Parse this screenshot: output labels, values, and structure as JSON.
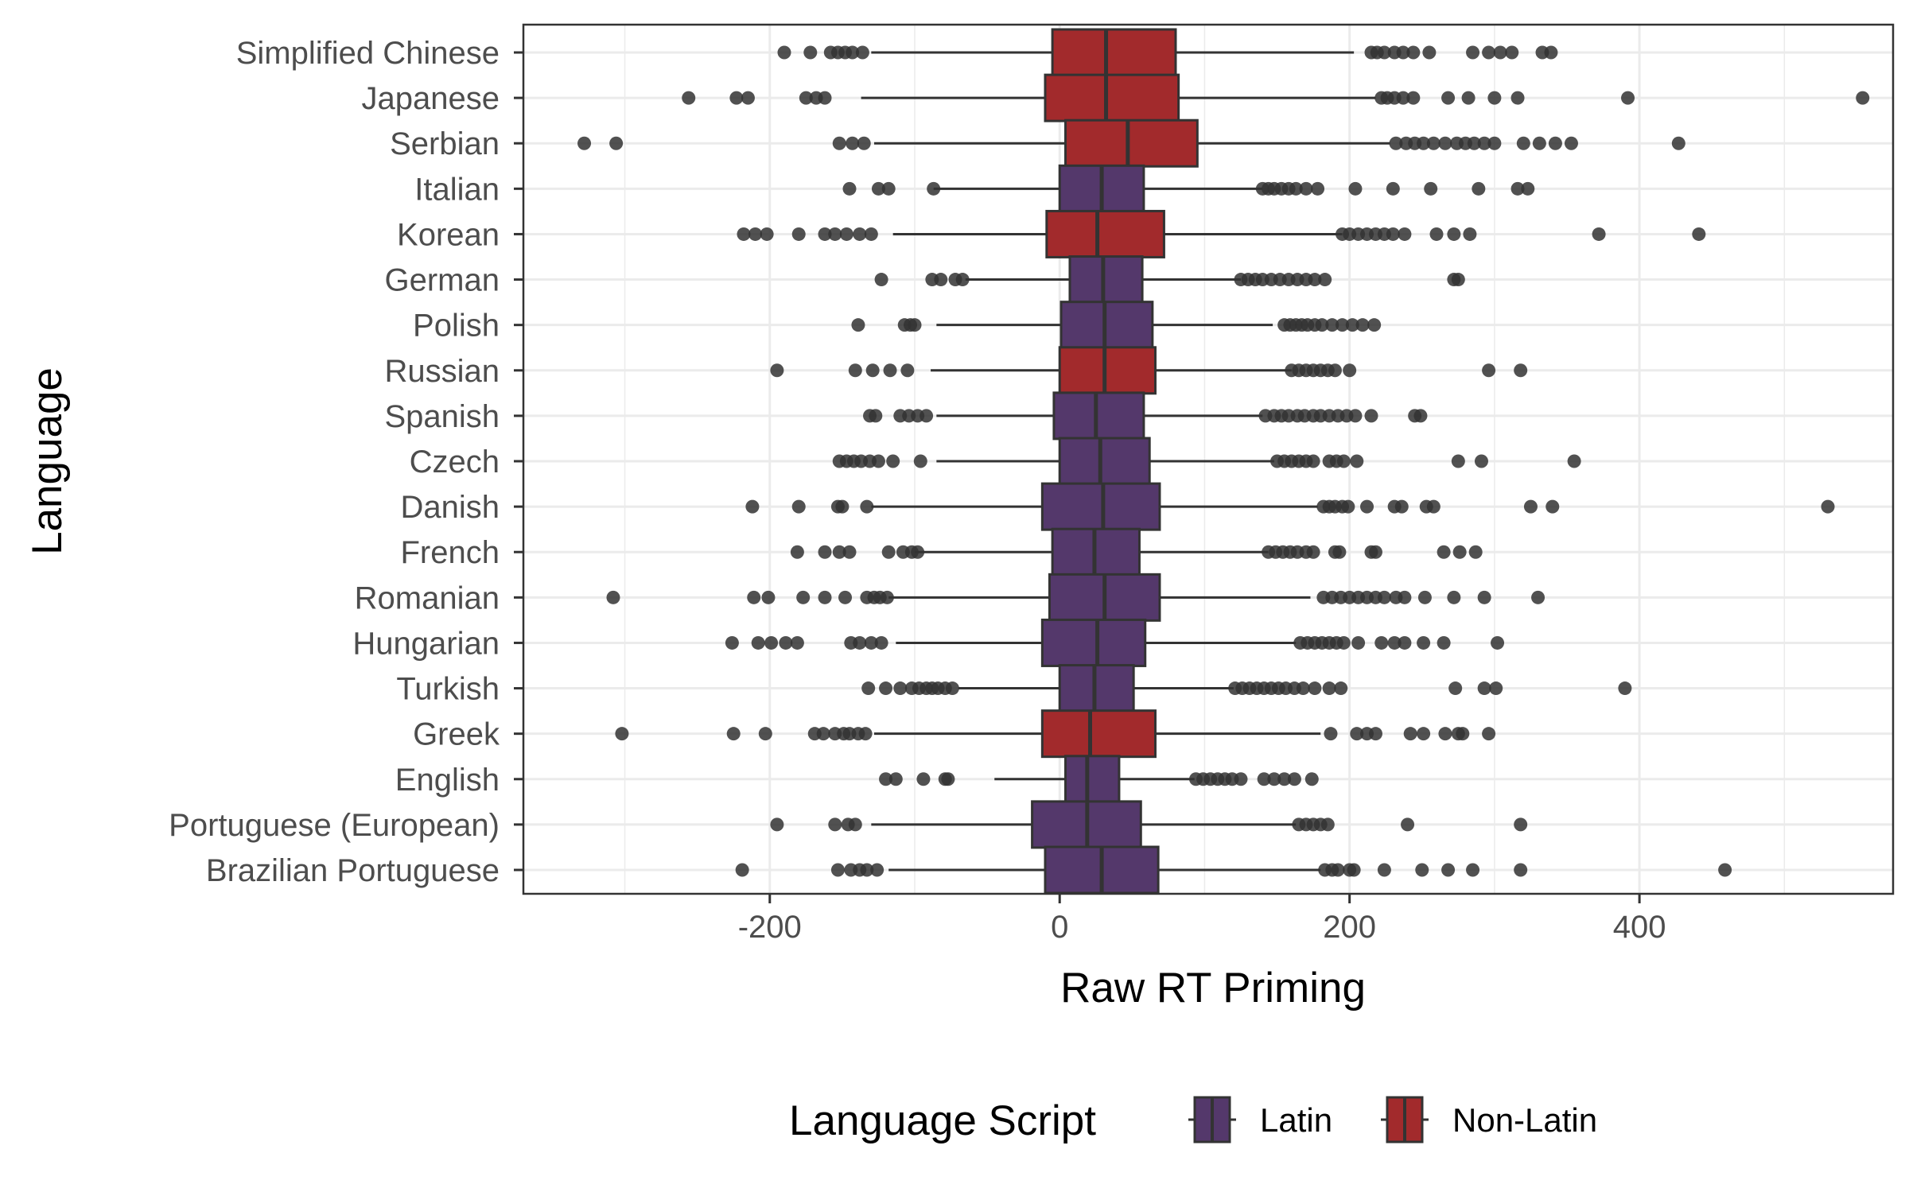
{
  "chart_data": {
    "type": "boxplot",
    "orientation": "horizontal",
    "xlabel": "Raw RT Priming",
    "ylabel": "Language",
    "xlim": [
      -370,
      575
    ],
    "xticks": [
      -200,
      0,
      200,
      400
    ],
    "xtick_labels": [
      "-200",
      "0",
      "200",
      "400"
    ],
    "grid": true,
    "legend": {
      "title": "Language Script",
      "position": "bottom",
      "entries": [
        {
          "label": "Latin",
          "color": "#54386b"
        },
        {
          "label": "Non-Latin",
          "color": "#a22a2c"
        }
      ]
    },
    "categories": [
      {
        "name": "Simplified Chinese",
        "script": "Non-Latin",
        "whisker_low": -130,
        "q1": -5,
        "median": 32,
        "q3": 80,
        "whisker_high": 203,
        "outliers": [
          -190,
          -172,
          -158,
          -153,
          -148,
          -143,
          -136,
          215,
          219,
          224,
          231,
          237,
          244,
          255,
          285,
          296,
          304,
          312,
          333,
          339
        ]
      },
      {
        "name": "Japanese",
        "script": "Non-Latin",
        "whisker_low": -137,
        "q1": -10,
        "median": 32,
        "q3": 82,
        "whisker_high": 218,
        "outliers": [
          -256,
          -223,
          -215,
          -175,
          -168,
          -162,
          222,
          226,
          231,
          237,
          244,
          268,
          282,
          300,
          316,
          392,
          554
        ]
      },
      {
        "name": "Serbian",
        "script": "Non-Latin",
        "whisker_low": -128,
        "q1": 4,
        "median": 47,
        "q3": 95,
        "whisker_high": 228,
        "outliers": [
          -328,
          -306,
          -152,
          -143,
          -135,
          232,
          239,
          245,
          251,
          258,
          266,
          274,
          280,
          286,
          293,
          300,
          320,
          331,
          342,
          353,
          427
        ]
      },
      {
        "name": "Italian",
        "script": "Latin",
        "whisker_low": -87,
        "q1": 0,
        "median": 29,
        "q3": 58,
        "whisker_high": 140,
        "outliers": [
          -145,
          -125,
          -118,
          -87,
          140,
          144,
          148,
          153,
          158,
          163,
          170,
          178,
          204,
          230,
          256,
          289,
          316,
          323
        ]
      },
      {
        "name": "Korean",
        "script": "Non-Latin",
        "whisker_low": -115,
        "q1": -9,
        "median": 26,
        "q3": 72,
        "whisker_high": 195,
        "outliers": [
          -218,
          -210,
          -202,
          -180,
          -162,
          -155,
          -147,
          -138,
          -130,
          195,
          200,
          206,
          212,
          218,
          224,
          230,
          238,
          260,
          272,
          283,
          372,
          441
        ]
      },
      {
        "name": "German",
        "script": "Latin",
        "whisker_low": -65,
        "q1": 7,
        "median": 30,
        "q3": 57,
        "whisker_high": 125,
        "outliers": [
          -123,
          -88,
          -82,
          -72,
          -67,
          125,
          130,
          135,
          140,
          146,
          152,
          158,
          164,
          170,
          176,
          183,
          272,
          275
        ]
      },
      {
        "name": "Polish",
        "script": "Latin",
        "whisker_low": -85,
        "q1": 1,
        "median": 31,
        "q3": 64,
        "whisker_high": 147,
        "outliers": [
          -139,
          -107,
          -103,
          -100,
          155,
          159,
          163,
          167,
          171,
          176,
          181,
          188,
          195,
          202,
          209,
          217
        ]
      },
      {
        "name": "Russian",
        "script": "Non-Latin",
        "whisker_low": -89,
        "q1": 0,
        "median": 31,
        "q3": 66,
        "whisker_high": 160,
        "outliers": [
          -195,
          -141,
          -129,
          -117,
          -105,
          160,
          165,
          170,
          175,
          180,
          185,
          190,
          200,
          296,
          318
        ]
      },
      {
        "name": "Spanish",
        "script": "Latin",
        "whisker_low": -85,
        "q1": -4,
        "median": 25,
        "q3": 58,
        "whisker_high": 140,
        "outliers": [
          -131,
          -127,
          -110,
          -104,
          -98,
          -92,
          142,
          148,
          153,
          158,
          164,
          169,
          175,
          180,
          186,
          192,
          198,
          204,
          215,
          245,
          249
        ]
      },
      {
        "name": "Czech",
        "script": "Latin",
        "whisker_low": -85,
        "q1": 0,
        "median": 28,
        "q3": 62,
        "whisker_high": 148,
        "outliers": [
          -152,
          -147,
          -142,
          -137,
          -131,
          -125,
          -115,
          -96,
          150,
          155,
          160,
          165,
          170,
          175,
          186,
          191,
          196,
          205,
          275,
          291,
          355
        ]
      },
      {
        "name": "Danish",
        "script": "Latin",
        "whisker_low": -130,
        "q1": -12,
        "median": 30,
        "q3": 69,
        "whisker_high": 178,
        "outliers": [
          -212,
          -180,
          -153,
          -150,
          -133,
          182,
          186,
          190,
          195,
          199,
          212,
          231,
          236,
          253,
          258,
          325,
          340,
          530
        ]
      },
      {
        "name": "French",
        "script": "Latin",
        "whisker_low": -100,
        "q1": -5,
        "median": 24,
        "q3": 55,
        "whisker_high": 144,
        "outliers": [
          -181,
          -162,
          -152,
          -145,
          -118,
          -108,
          -102,
          -98,
          144,
          149,
          154,
          159,
          164,
          170,
          175,
          190,
          193,
          215,
          218,
          265,
          276,
          287
        ]
      },
      {
        "name": "Romanian",
        "script": "Latin",
        "whisker_low": -118,
        "q1": -7,
        "median": 31,
        "q3": 69,
        "whisker_high": 173,
        "outliers": [
          -308,
          -211,
          -201,
          -177,
          -162,
          -148,
          -133,
          -128,
          -124,
          -119,
          182,
          188,
          194,
          200,
          206,
          212,
          218,
          224,
          232,
          238,
          252,
          272,
          293,
          330
        ]
      },
      {
        "name": "Hungarian",
        "script": "Latin",
        "whisker_low": -113,
        "q1": -12,
        "median": 26,
        "q3": 59,
        "whisker_high": 163,
        "outliers": [
          -226,
          -208,
          -199,
          -189,
          -181,
          -144,
          -138,
          -130,
          -123,
          166,
          171,
          176,
          181,
          186,
          191,
          196,
          206,
          222,
          231,
          238,
          251,
          265,
          302
        ]
      },
      {
        "name": "Turkish",
        "script": "Latin",
        "whisker_low": -70,
        "q1": 0,
        "median": 24,
        "q3": 51,
        "whisker_high": 120,
        "outliers": [
          -132,
          -120,
          -110,
          -102,
          -97,
          -92,
          -88,
          -84,
          -79,
          -74,
          121,
          126,
          131,
          136,
          141,
          146,
          151,
          156,
          162,
          168,
          176,
          186,
          194,
          273,
          293,
          301,
          390
        ]
      },
      {
        "name": "Greek",
        "script": "Non-Latin",
        "whisker_low": -128,
        "q1": -12,
        "median": 21,
        "q3": 66,
        "whisker_high": 180,
        "outliers": [
          -302,
          -225,
          -203,
          -169,
          -163,
          -155,
          -149,
          -145,
          -139,
          -134,
          187,
          205,
          212,
          218,
          242,
          251,
          266,
          275,
          278,
          296
        ]
      },
      {
        "name": "English",
        "script": "Latin",
        "whisker_low": -45,
        "q1": 4,
        "median": 19,
        "q3": 41,
        "whisker_high": 93,
        "outliers": [
          -120,
          -113,
          -94,
          -79,
          -77,
          94,
          99,
          104,
          109,
          114,
          119,
          125,
          141,
          148,
          155,
          162,
          174
        ]
      },
      {
        "name": "Portuguese (European)",
        "script": "Latin",
        "whisker_low": -130,
        "q1": -19,
        "median": 19,
        "q3": 56,
        "whisker_high": 163,
        "outliers": [
          -195,
          -155,
          -146,
          -141,
          165,
          170,
          175,
          180,
          185,
          240,
          318
        ]
      },
      {
        "name": "Brazilian Portuguese",
        "script": "Latin",
        "whisker_low": -118,
        "q1": -10,
        "median": 29,
        "q3": 68,
        "whisker_high": 180,
        "outliers": [
          -219,
          -153,
          -144,
          -138,
          -133,
          -126,
          183,
          188,
          192,
          200,
          203,
          224,
          250,
          268,
          285,
          318,
          459
        ]
      }
    ]
  }
}
